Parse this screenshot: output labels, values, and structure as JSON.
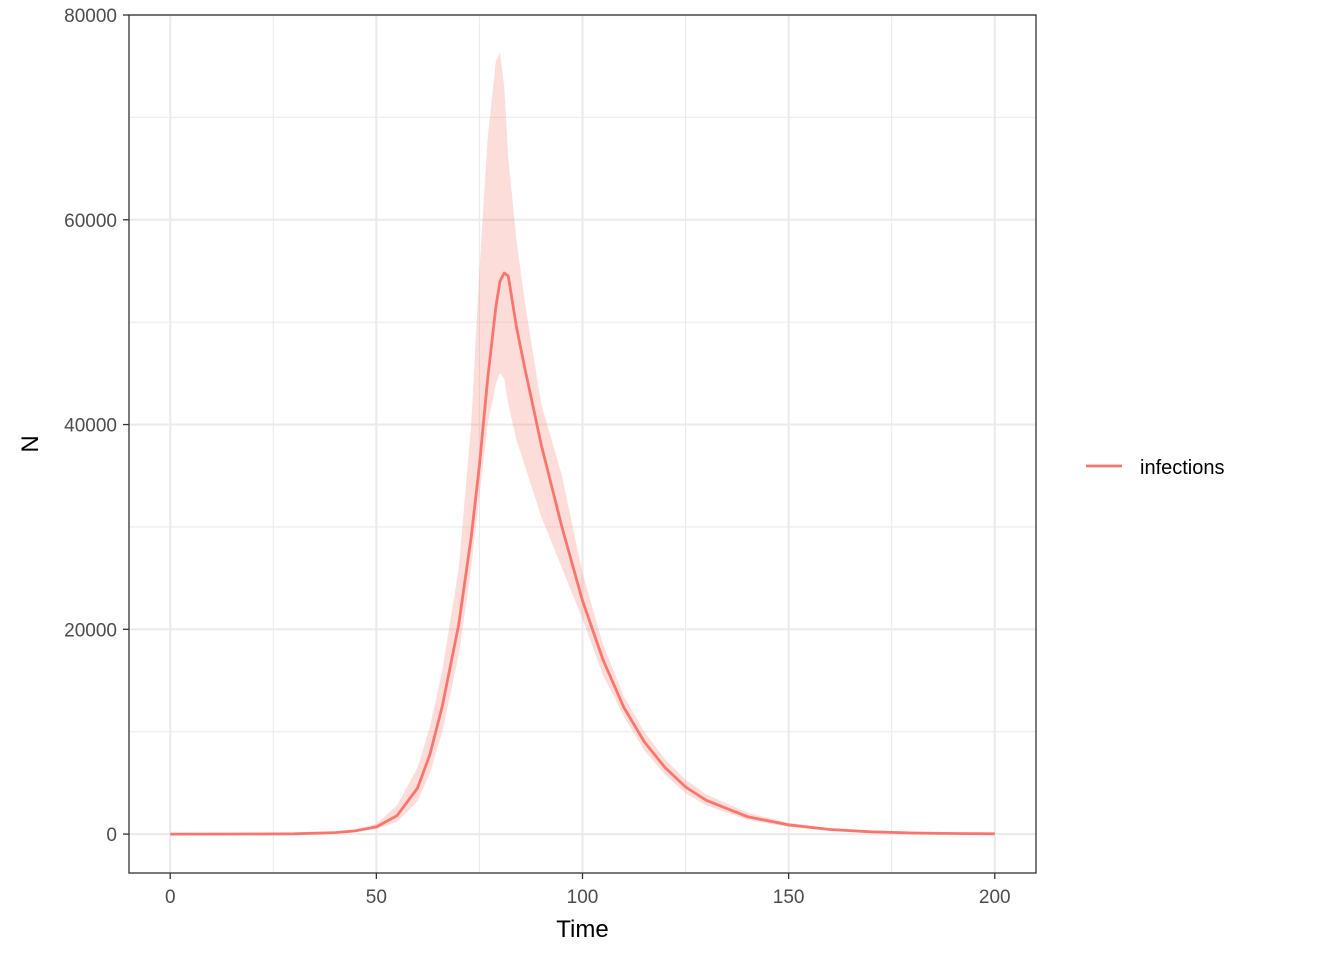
{
  "chart_data": {
    "type": "line",
    "xlabel": "Time",
    "ylabel": "N",
    "xlim": [
      -10,
      210
    ],
    "ylim": [
      -3800,
      80000
    ],
    "x_ticks": [
      0,
      50,
      100,
      150,
      200
    ],
    "x_tick_labels": [
      "0",
      "50",
      "100",
      "150",
      "200"
    ],
    "x_minor_ticks": [
      25,
      75,
      125,
      175
    ],
    "y_ticks": [
      0,
      20000,
      40000,
      60000,
      80000
    ],
    "y_tick_labels": [
      "0",
      "20000",
      "40000",
      "60000",
      "80000"
    ],
    "y_minor_ticks": [
      10000,
      30000,
      50000,
      70000
    ],
    "grid": true,
    "legend_position": "right",
    "colors": {
      "line": "#F8766D",
      "ribbon": "#F8766D",
      "panel_border": "#333333",
      "grid": "#EBEBEB"
    },
    "series": [
      {
        "name": "infections",
        "x": [
          0,
          20,
          30,
          40,
          45,
          50,
          55,
          60,
          63,
          66,
          70,
          73,
          75,
          77,
          79,
          80,
          81,
          82,
          84,
          86,
          88,
          90,
          95,
          100,
          105,
          110,
          115,
          120,
          125,
          130,
          140,
          150,
          160,
          170,
          180,
          190,
          200
        ],
        "y": [
          0,
          5,
          30,
          150,
          320,
          700,
          1800,
          4500,
          7800,
          12500,
          20500,
          29000,
          36000,
          44500,
          51500,
          54000,
          54800,
          54500,
          49500,
          45500,
          41800,
          38000,
          30000,
          22800,
          17000,
          12400,
          9000,
          6500,
          4600,
          3300,
          1700,
          900,
          450,
          220,
          110,
          60,
          30
        ],
        "lower": [
          0,
          5,
          25,
          120,
          250,
          500,
          1200,
          3200,
          6000,
          10000,
          17500,
          26000,
          33000,
          40000,
          44000,
          45000,
          44500,
          42000,
          38500,
          36000,
          33500,
          31000,
          26000,
          21000,
          15500,
          11500,
          8200,
          5800,
          4000,
          2800,
          1400,
          700,
          350,
          170,
          80,
          40,
          20
        ],
        "upper": [
          0,
          6,
          40,
          200,
          450,
          1000,
          2800,
          6500,
          10500,
          16000,
          26000,
          40000,
          55000,
          68000,
          75500,
          76300,
          73000,
          66000,
          58000,
          52000,
          47000,
          42000,
          35000,
          25500,
          18500,
          13500,
          10000,
          7300,
          5300,
          3900,
          2100,
          1100,
          560,
          280,
          140,
          80,
          40
        ]
      }
    ]
  },
  "legend": {
    "label": "infections"
  }
}
